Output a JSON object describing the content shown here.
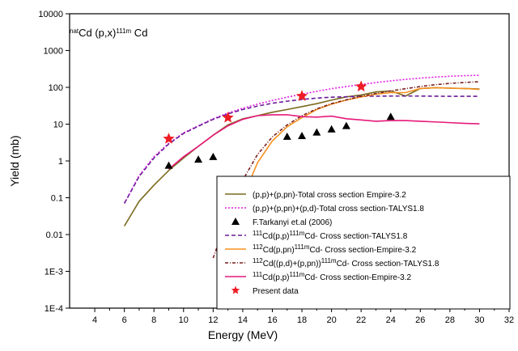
{
  "chart_data": {
    "type": "line",
    "title": {
      "pre_sup": "nat",
      "main": "Cd (p,x)",
      "post_sup": "111m",
      "tail": " Cd"
    },
    "xlabel": "Energy (MeV)",
    "ylabel": "Yield (mb)",
    "xlim": [
      2.3,
      32
    ],
    "ylim": [
      0.0001,
      10000
    ],
    "yscale": "log",
    "x_ticks": [
      4,
      6,
      8,
      10,
      12,
      14,
      16,
      18,
      20,
      22,
      24,
      26,
      28,
      30,
      32
    ],
    "y_ticks": [
      {
        "value": 10000,
        "label": "10000"
      },
      {
        "value": 1000,
        "label": "1000"
      },
      {
        "value": 100,
        "label": "100"
      },
      {
        "value": 10,
        "label": "10"
      },
      {
        "value": 1,
        "label": "1"
      },
      {
        "value": 0.1,
        "label": "0.1"
      },
      {
        "value": 0.01,
        "label": "0.01"
      },
      {
        "value": 0.001,
        "label": "1E-3"
      },
      {
        "value": 0.0001,
        "label": "1E-4"
      }
    ],
    "grid": false,
    "legend_position": "bottom-right",
    "series": [
      {
        "legend": [
          {
            "text": "(p,p)+(p,pn)-Total cross section Empire-3.2"
          }
        ],
        "kind": "line",
        "color": "#7a6a1e",
        "dash": "none",
        "x": [
          6,
          7,
          8,
          9,
          10,
          11,
          12,
          13,
          14,
          15,
          16,
          17,
          18,
          19,
          20,
          21,
          22,
          23,
          24,
          25,
          26,
          27,
          28,
          29,
          30
        ],
        "y": [
          0.017,
          0.08,
          0.22,
          0.55,
          1.2,
          2.5,
          5.0,
          9.5,
          14,
          17,
          21,
          25,
          30,
          36,
          45,
          55,
          62,
          75,
          80,
          58,
          93,
          98,
          95,
          93,
          90
        ]
      },
      {
        "legend": [
          {
            "text": "(p,p)+(p,pn)+(p,d)-Total cross section-TALYS1.8"
          }
        ],
        "kind": "line",
        "color": "#e020e0",
        "dash": "2,2",
        "x": [
          6,
          7,
          8,
          9,
          10,
          11,
          12,
          13,
          14,
          15,
          16,
          17,
          18,
          19,
          20,
          21,
          22,
          23,
          24,
          25,
          26,
          27,
          28,
          29,
          30
        ],
        "y": [
          0.07,
          0.4,
          1.3,
          3.0,
          5.8,
          9.0,
          14,
          20,
          27,
          35,
          44,
          54,
          65,
          78,
          92,
          105,
          120,
          135,
          150,
          165,
          178,
          190,
          200,
          208,
          212
        ]
      },
      {
        "legend": [
          {
            "text": "F.Tarkanyi et.al (2006)"
          }
        ],
        "kind": "triangle",
        "color": "#000000",
        "x": [
          9,
          11,
          12,
          17,
          18,
          19,
          20,
          21,
          24
        ],
        "y": [
          0.75,
          1.1,
          1.3,
          4.6,
          4.8,
          6.0,
          7.3,
          9.0,
          16
        ]
      },
      {
        "legend": [
          {
            "sup": "111",
            "text": "Cd(p,p)"
          },
          {
            "sup": "111m",
            "text": "Cd- Cross section-TALYS1.8"
          }
        ],
        "kind": "line",
        "color": "#6a1b9a",
        "dash": "5,3",
        "x": [
          6,
          7,
          8,
          9,
          10,
          11,
          12,
          13,
          14,
          15,
          16,
          17,
          18,
          19,
          20,
          22,
          24,
          26,
          28,
          30
        ],
        "y": [
          0.07,
          0.38,
          1.2,
          2.9,
          5.6,
          8.8,
          13.5,
          19,
          25,
          31,
          37,
          42,
          47,
          51,
          54,
          57,
          58,
          58,
          57,
          57
        ]
      },
      {
        "legend": [
          {
            "sup": "112",
            "text": "Cd(p,pn)"
          },
          {
            "sup": "111m",
            "text": "Cd- Cross section-Empire-3.2"
          }
        ],
        "kind": "line",
        "color": "#f5901e",
        "dash": "none",
        "x": [
          13,
          14,
          15,
          16,
          17,
          18,
          19,
          20,
          21,
          22,
          23,
          24,
          25,
          26,
          27,
          28,
          29,
          30
        ],
        "y": [
          0.005,
          0.1,
          0.9,
          3.5,
          8.5,
          15,
          25,
          35,
          45,
          55,
          65,
          72,
          72,
          93,
          98,
          95,
          93,
          88
        ]
      },
      {
        "legend": [
          {
            "sup": "112",
            "text": "Cd((p,d)+(p,pn))"
          },
          {
            "sup": "111m",
            "text": "Cd- Cross section-TALYS1.8"
          }
        ],
        "kind": "line",
        "color": "#7b1f1f",
        "dash": "4,2,1,2",
        "x": [
          12,
          13,
          14,
          15,
          16,
          17,
          18,
          19,
          20,
          21,
          22,
          23,
          24,
          25,
          26,
          27,
          28,
          29,
          30
        ],
        "y": [
          0.0023,
          0.03,
          0.3,
          1.5,
          4.5,
          9.5,
          17,
          26,
          36,
          46,
          57,
          68,
          80,
          92,
          105,
          118,
          128,
          136,
          142
        ]
      },
      {
        "legend": [
          {
            "sup": "111",
            "text": "Cd(p,p)"
          },
          {
            "sup": "111m",
            "text": "Cd- Cross section-Empire-3.2"
          }
        ],
        "kind": "line",
        "color": "#e6197a",
        "dash": "none",
        "x": [
          9,
          10,
          11,
          12,
          13,
          14,
          15,
          16,
          17,
          18,
          19,
          20,
          21,
          22,
          23,
          24,
          25,
          26,
          27,
          28,
          29,
          30
        ],
        "y": [
          0.6,
          1.3,
          2.5,
          5.0,
          9.0,
          13.5,
          17,
          18,
          18,
          16,
          15.5,
          16.5,
          14,
          13,
          12,
          12.5,
          12.5,
          12,
          11.5,
          11,
          10.5,
          10.2
        ]
      },
      {
        "legend": [
          {
            "text": "Present data"
          }
        ],
        "kind": "star",
        "color": "#ee1c24",
        "x": [
          9,
          13,
          18,
          22
        ],
        "y": [
          4,
          15,
          58,
          105
        ]
      }
    ]
  }
}
